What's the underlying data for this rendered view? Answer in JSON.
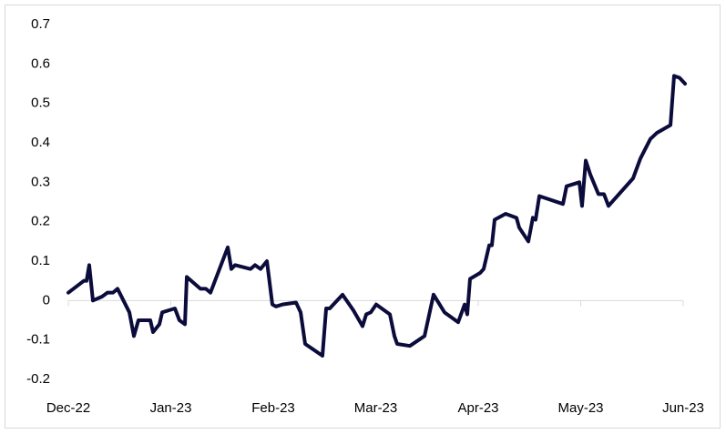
{
  "chart_data": {
    "type": "line",
    "x": [
      0,
      0.151,
      0.178,
      0.204,
      0.24,
      0.329,
      0.382,
      0.436,
      0.48,
      0.596,
      0.64,
      0.684,
      0.729,
      0.8,
      0.827,
      0.889,
      0.916,
      1.04,
      1.084,
      1.138,
      1.156,
      1.289,
      1.342,
      1.387,
      1.556,
      1.591,
      1.627,
      1.778,
      1.822,
      1.876,
      1.938,
      1.991,
      2.027,
      2.089,
      2.222,
      2.267,
      2.311,
      2.48,
      2.516,
      2.551,
      2.676,
      2.782,
      2.871,
      2.907,
      2.951,
      3.004,
      3.138,
      3.182,
      3.209,
      3.333,
      3.476,
      3.564,
      3.671,
      3.804,
      3.867,
      3.893,
      3.92,
      4.018,
      4.053,
      4.107,
      4.133,
      4.16,
      4.267,
      4.373,
      4.4,
      4.489,
      4.533,
      4.56,
      4.596,
      4.827,
      4.862,
      4.987,
      5.013,
      5.049,
      5.093,
      5.173,
      5.227,
      5.271,
      5.511,
      5.582,
      5.68,
      5.742,
      5.876,
      5.911,
      5.964,
      6.018
    ],
    "series": [
      {
        "color": "#0c0c3c",
        "values": [
          0.02,
          0.05,
          0.05,
          0.09,
          0.0,
          0.01,
          0.02,
          0.02,
          0.03,
          -0.03,
          -0.09,
          -0.05,
          -0.05,
          -0.05,
          -0.08,
          -0.06,
          -0.03,
          -0.02,
          -0.05,
          -0.06,
          0.06,
          0.03,
          0.03,
          0.02,
          0.135,
          0.08,
          0.09,
          0.08,
          0.09,
          0.08,
          0.1,
          -0.01,
          -0.015,
          -0.01,
          -0.005,
          -0.03,
          -0.11,
          -0.14,
          -0.02,
          -0.02,
          0.015,
          -0.025,
          -0.065,
          -0.035,
          -0.03,
          -0.01,
          -0.035,
          -0.09,
          -0.11,
          -0.115,
          -0.09,
          0.015,
          -0.03,
          -0.055,
          -0.01,
          -0.035,
          0.055,
          0.07,
          0.08,
          0.14,
          0.14,
          0.205,
          0.22,
          0.21,
          0.185,
          0.15,
          0.21,
          0.205,
          0.265,
          0.245,
          0.29,
          0.3,
          0.24,
          0.355,
          0.32,
          0.27,
          0.27,
          0.24,
          0.31,
          0.36,
          0.41,
          0.425,
          0.445,
          0.57,
          0.565,
          0.55
        ]
      }
    ],
    "xlim": [
      0,
      6
    ],
    "xticks": [
      {
        "value": 0,
        "label": "Dec-22"
      },
      {
        "value": 1,
        "label": "Jan-23"
      },
      {
        "value": 2,
        "label": "Feb-23"
      },
      {
        "value": 3,
        "label": "Mar-23"
      },
      {
        "value": 4,
        "label": "Apr-23"
      },
      {
        "value": 5,
        "label": "May-23"
      },
      {
        "value": 6,
        "label": "Jun-23"
      }
    ],
    "ylim": [
      -0.2,
      0.7
    ],
    "yticks": [
      -0.2,
      -0.1,
      0,
      0.1,
      0.2,
      0.3,
      0.4,
      0.5,
      0.6,
      0.7
    ],
    "grid": false
  }
}
